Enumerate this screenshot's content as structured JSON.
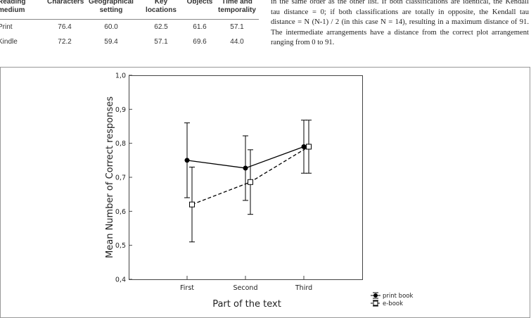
{
  "table": {
    "header": [
      "Reading medium",
      "Characters",
      "Geographical setting",
      "Key locations",
      "Objects",
      "Time and temporality"
    ],
    "rows": [
      [
        "Print",
        "76.4",
        "60.0",
        "62.5",
        "61.6",
        "57.1"
      ],
      [
        "Kindle",
        "72.2",
        "59.4",
        "57.1",
        "69.6",
        "44.0"
      ]
    ]
  },
  "text": {
    "lines": [
      "in the same order as the other list. If both classifications are identical, the Kendall",
      "tau distance = 0; if both classifications are totally in opposite, the Kendall tau",
      "distance = N (N-1) / 2 (in this case N = 14), resulting in a maximum distance of 91.",
      "The intermediate arrangements have a distance from the correct plot arrangement",
      "ranging from 0 to 91."
    ]
  },
  "chart_data": {
    "type": "line",
    "x_label": "Part of the text",
    "y_label": "Mean Number of Correct responses",
    "categories": [
      "First",
      "Second",
      "Third"
    ],
    "series": [
      {
        "name": "print book",
        "color": "#000000",
        "line_style": "solid",
        "marker": "filled-circle",
        "values": [
          0.75,
          0.727,
          0.79
        ],
        "errors": [
          0.11,
          0.095,
          0.078
        ]
      },
      {
        "name": "e-book",
        "color": "#000000",
        "line_style": "dashed",
        "marker": "open-square",
        "values": [
          0.62,
          0.686,
          0.79
        ],
        "errors": [
          0.11,
          0.095,
          0.078
        ]
      }
    ],
    "ylim": [
      0.4,
      1.0
    ],
    "yticks": [
      {
        "value": 0.4,
        "label": "0,4"
      },
      {
        "value": 0.5,
        "label": "0,5"
      },
      {
        "value": 0.6,
        "label": "0,6"
      },
      {
        "value": 0.7,
        "label": "0,7"
      },
      {
        "value": 0.8,
        "label": "0,8"
      },
      {
        "value": 0.9,
        "label": "0,9"
      },
      {
        "value": 1.0,
        "label": "1,0"
      }
    ],
    "legend": "bottom-right"
  }
}
